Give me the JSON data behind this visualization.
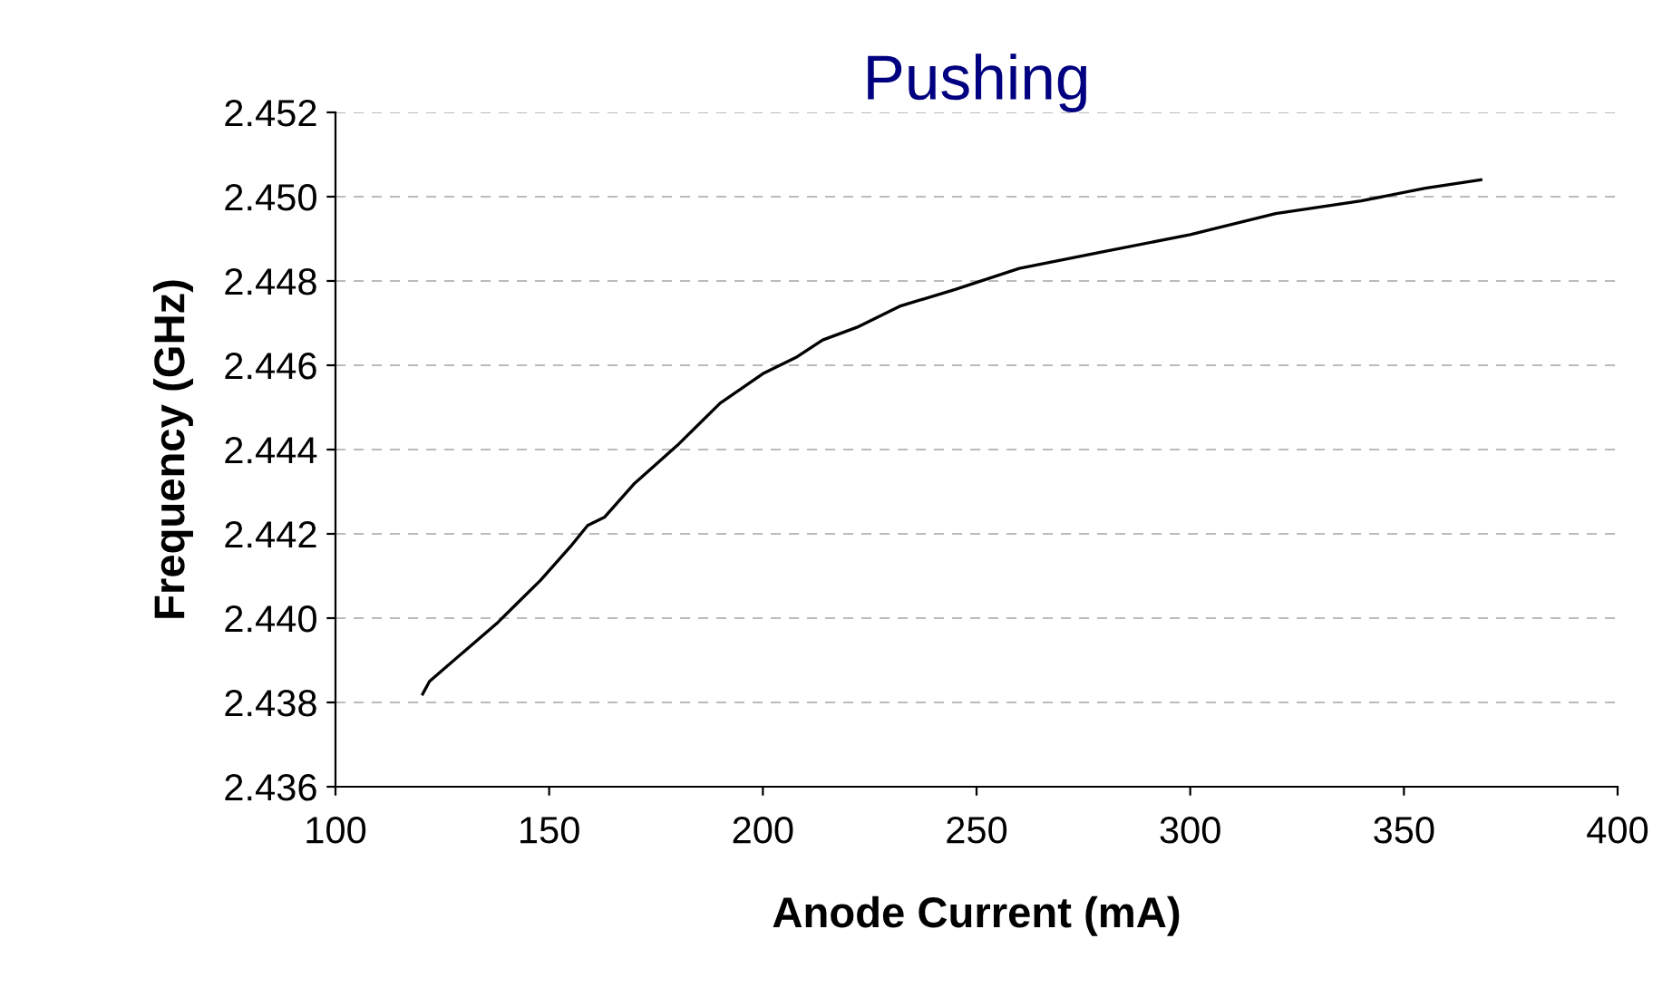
{
  "chart_data": {
    "type": "line",
    "title": "Pushing",
    "xlabel": "Anode Current (mA)",
    "ylabel": "Frequency (GHz)",
    "x": [
      120.4,
      122,
      130,
      138,
      142,
      148,
      155,
      159,
      163,
      170,
      180,
      190,
      200,
      208,
      214,
      222,
      232,
      245,
      260,
      280,
      300,
      320,
      340,
      355,
      368
    ],
    "series": [
      {
        "color": "#000000",
        "values": [
          2.4382,
          2.4385,
          2.4392,
          2.4399,
          2.4403,
          2.4409,
          2.4417,
          2.4422,
          2.4424,
          2.4432,
          2.4441,
          2.4451,
          2.4458,
          2.4462,
          2.4466,
          2.4469,
          2.4474,
          2.4478,
          2.4483,
          2.4487,
          2.4491,
          2.4496,
          2.4499,
          2.4502,
          2.4504
        ]
      }
    ],
    "xlim": [
      100,
      400
    ],
    "xticks": [
      100,
      150,
      200,
      250,
      300,
      350,
      400
    ],
    "ylim": [
      2.436,
      2.452
    ],
    "yticks": [
      {
        "value": 2.436,
        "label": "2.436"
      },
      {
        "value": 2.438,
        "label": "2.438"
      },
      {
        "value": 2.44,
        "label": "2.440"
      },
      {
        "value": 2.442,
        "label": "2.442"
      },
      {
        "value": 2.444,
        "label": "2.444"
      },
      {
        "value": 2.446,
        "label": "2.446"
      },
      {
        "value": 2.448,
        "label": "2.448"
      },
      {
        "value": 2.45,
        "label": "2.450"
      },
      {
        "value": 2.452,
        "label": "2.452"
      }
    ],
    "grid": "y",
    "line_style": "solid"
  }
}
